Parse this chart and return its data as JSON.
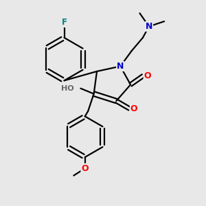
{
  "background_color": "#e8e8e8",
  "atom_colors": {
    "C": "#000000",
    "N": "#0000cc",
    "O": "#ff0000",
    "F": "#008080",
    "H": "#666666"
  },
  "bond_color": "#000000",
  "bond_width": 1.6,
  "figsize": [
    3.0,
    3.0
  ],
  "dpi": 100,
  "xlim": [
    0,
    10
  ],
  "ylim": [
    0,
    10
  ]
}
